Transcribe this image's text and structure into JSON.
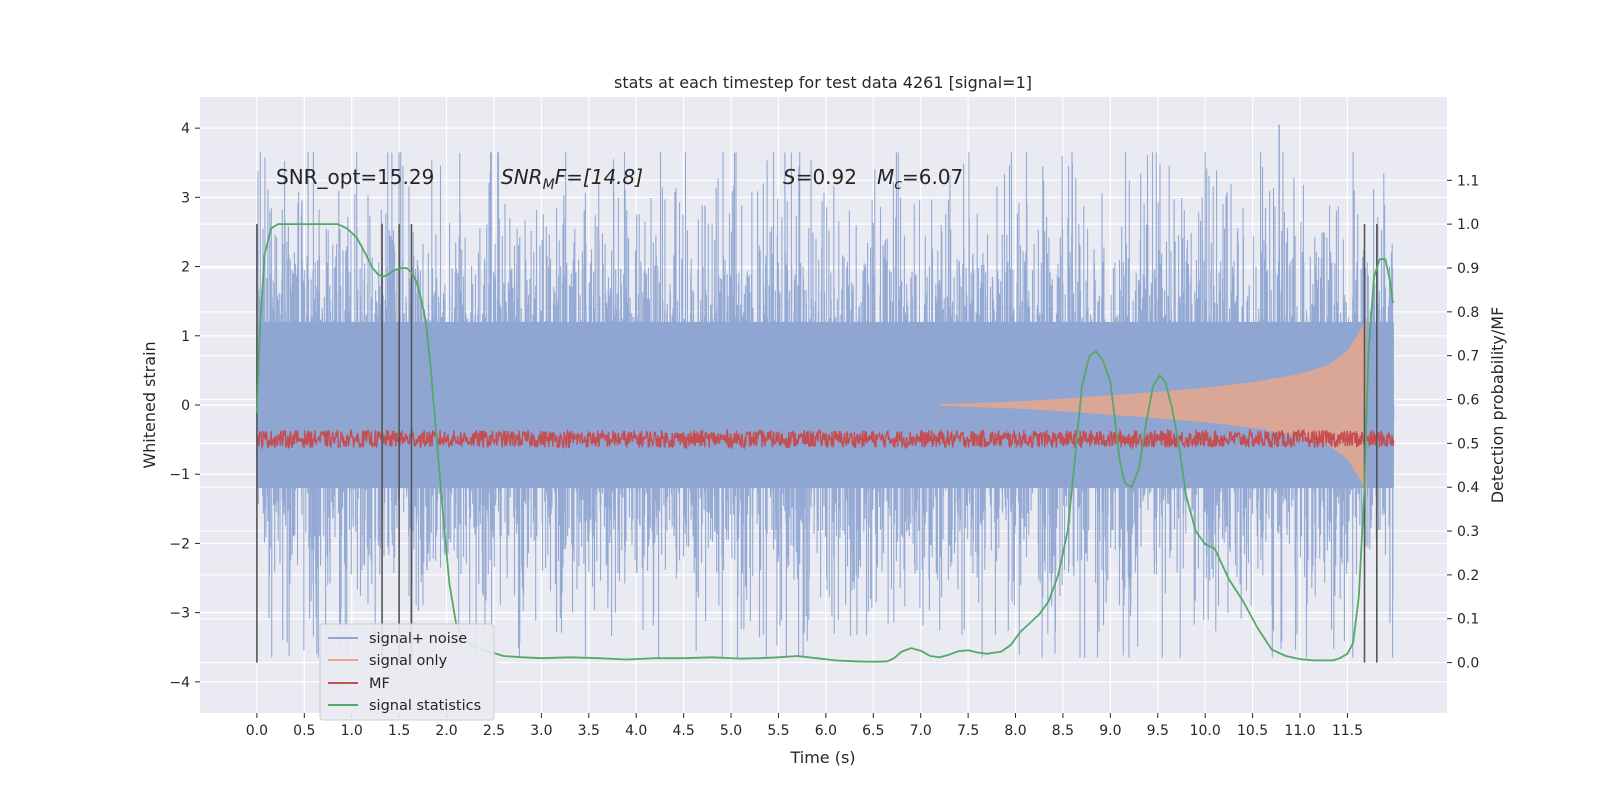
{
  "chart_data": {
    "type": "line",
    "title": "stats at each timestep for test data 4261 [signal=1]",
    "xlabel": "Time (s)",
    "ylabel": "Whitened strain",
    "y2label": "Detection probability/MF",
    "xlim": [
      -0.6,
      12.55
    ],
    "ylim": [
      -4.45,
      4.45
    ],
    "y2lim": [
      -0.115,
      1.29
    ],
    "x_ticks": [
      0.0,
      0.5,
      1.0,
      1.5,
      2.0,
      2.5,
      3.0,
      3.5,
      4.0,
      4.5,
      5.0,
      5.5,
      6.0,
      6.5,
      7.0,
      7.5,
      8.0,
      8.5,
      9.0,
      9.5,
      10.0,
      10.5,
      11.0,
      11.5
    ],
    "x_tick_labels": [
      "0.0",
      "0.5",
      "1.0",
      "1.5",
      "2.0",
      "2.5",
      "3.0",
      "3.5",
      "4.0",
      "4.5",
      "5.0",
      "5.5",
      "6.0",
      "6.5",
      "7.0",
      "7.5",
      "8.0",
      "8.5",
      "9.0",
      "9.5",
      "10.0",
      "10.5",
      "11.0",
      "11.5"
    ],
    "y_ticks": [
      4,
      3,
      2,
      1,
      0,
      -1,
      -2,
      -3,
      -4
    ],
    "y_tick_labels": [
      "4",
      "3",
      "2",
      "1",
      "0",
      "−1",
      "−2",
      "−3",
      "−4"
    ],
    "y2_ticks": [
      1.1,
      1.0,
      0.9,
      0.8,
      0.7,
      0.6,
      0.5,
      0.4,
      0.3,
      0.2,
      0.1,
      0.0
    ],
    "y2_tick_labels": [
      "1.1",
      "1.0",
      "0.9",
      "0.8",
      "0.7",
      "0.6",
      "0.5",
      "0.4",
      "0.3",
      "0.2",
      "0.1",
      "0.0"
    ],
    "grid": true,
    "legend_position": "lower-left",
    "annotations": {
      "snr_opt": "SNR_opt=15.29",
      "snr_mf": "SNR",
      "snr_mf_sub": "M",
      "snr_mf_rest": "F=[14.8]",
      "s_value": "S",
      "s_rest": "=0.92",
      "mc": "M",
      "mc_sub": "c",
      "mc_rest": "=6.07"
    },
    "vertical_markers_x": [
      0.0,
      1.32,
      1.5,
      1.63,
      11.68,
      11.81
    ],
    "series": [
      {
        "name": "signal+ noise",
        "color": "#8fa6d2",
        "kind": "noise-band",
        "axis": "left",
        "x_range": [
          0.0,
          11.99
        ],
        "typical_envelope": 2.5,
        "max_peak": 4.05
      },
      {
        "name": "signal only",
        "color": "#e8a68c",
        "kind": "chirp-envelope",
        "axis": "left",
        "x": [
          7.2,
          8.0,
          8.5,
          9.0,
          9.5,
          10.0,
          10.5,
          11.0,
          11.3,
          11.5,
          11.6,
          11.7
        ],
        "amplitude": [
          0.01,
          0.05,
          0.09,
          0.14,
          0.19,
          0.25,
          0.33,
          0.45,
          0.58,
          0.78,
          1.0,
          1.25
        ]
      },
      {
        "name": "MF",
        "color": "#c44e52",
        "kind": "line",
        "axis": "right",
        "baseline": 0.51,
        "jitter": 0.02
      },
      {
        "name": "signal statistics",
        "color": "#55a868",
        "kind": "line",
        "axis": "right",
        "x": [
          0.0,
          0.03,
          0.08,
          0.15,
          0.22,
          0.35,
          0.5,
          0.7,
          0.85,
          0.95,
          1.05,
          1.15,
          1.22,
          1.28,
          1.33,
          1.38,
          1.45,
          1.52,
          1.58,
          1.63,
          1.68,
          1.72,
          1.78,
          1.83,
          1.9,
          1.97,
          2.03,
          2.1,
          2.2,
          2.3,
          2.45,
          2.6,
          2.8,
          3.0,
          3.3,
          3.6,
          3.9,
          4.2,
          4.5,
          4.8,
          5.1,
          5.3,
          5.5,
          5.7,
          5.9,
          6.1,
          6.3,
          6.45,
          6.55,
          6.65,
          6.72,
          6.8,
          6.9,
          7.0,
          7.1,
          7.2,
          7.3,
          7.4,
          7.5,
          7.6,
          7.7,
          7.85,
          7.95,
          8.05,
          8.15,
          8.25,
          8.35,
          8.45,
          8.55,
          8.62,
          8.7,
          8.78,
          8.85,
          8.92,
          9.0,
          9.05,
          9.1,
          9.15,
          9.22,
          9.3,
          9.38,
          9.45,
          9.52,
          9.58,
          9.65,
          9.72,
          9.8,
          9.9,
          10.0,
          10.1,
          10.25,
          10.4,
          10.55,
          10.7,
          10.85,
          11.0,
          11.15,
          11.25,
          11.35,
          11.42,
          11.5,
          11.56,
          11.62,
          11.68,
          11.72,
          11.78,
          11.84,
          11.9,
          11.95,
          11.98
        ],
        "y": [
          0.57,
          0.75,
          0.93,
          0.99,
          1.0,
          1.0,
          1.0,
          1.0,
          1.0,
          0.99,
          0.97,
          0.93,
          0.9,
          0.885,
          0.88,
          0.885,
          0.895,
          0.9,
          0.9,
          0.89,
          0.87,
          0.84,
          0.78,
          0.68,
          0.5,
          0.32,
          0.18,
          0.09,
          0.05,
          0.035,
          0.025,
          0.015,
          0.012,
          0.01,
          0.012,
          0.01,
          0.007,
          0.01,
          0.01,
          0.012,
          0.009,
          0.01,
          0.012,
          0.015,
          0.01,
          0.005,
          0.003,
          0.002,
          0.002,
          0.003,
          0.01,
          0.025,
          0.033,
          0.027,
          0.015,
          0.012,
          0.018,
          0.026,
          0.028,
          0.023,
          0.02,
          0.025,
          0.04,
          0.07,
          0.09,
          0.11,
          0.14,
          0.2,
          0.3,
          0.45,
          0.63,
          0.7,
          0.71,
          0.69,
          0.64,
          0.55,
          0.46,
          0.41,
          0.4,
          0.44,
          0.55,
          0.63,
          0.655,
          0.64,
          0.58,
          0.5,
          0.38,
          0.3,
          0.27,
          0.26,
          0.19,
          0.14,
          0.08,
          0.03,
          0.015,
          0.008,
          0.005,
          0.005,
          0.005,
          0.01,
          0.02,
          0.045,
          0.15,
          0.4,
          0.7,
          0.88,
          0.92,
          0.92,
          0.87,
          0.82
        ]
      }
    ]
  }
}
